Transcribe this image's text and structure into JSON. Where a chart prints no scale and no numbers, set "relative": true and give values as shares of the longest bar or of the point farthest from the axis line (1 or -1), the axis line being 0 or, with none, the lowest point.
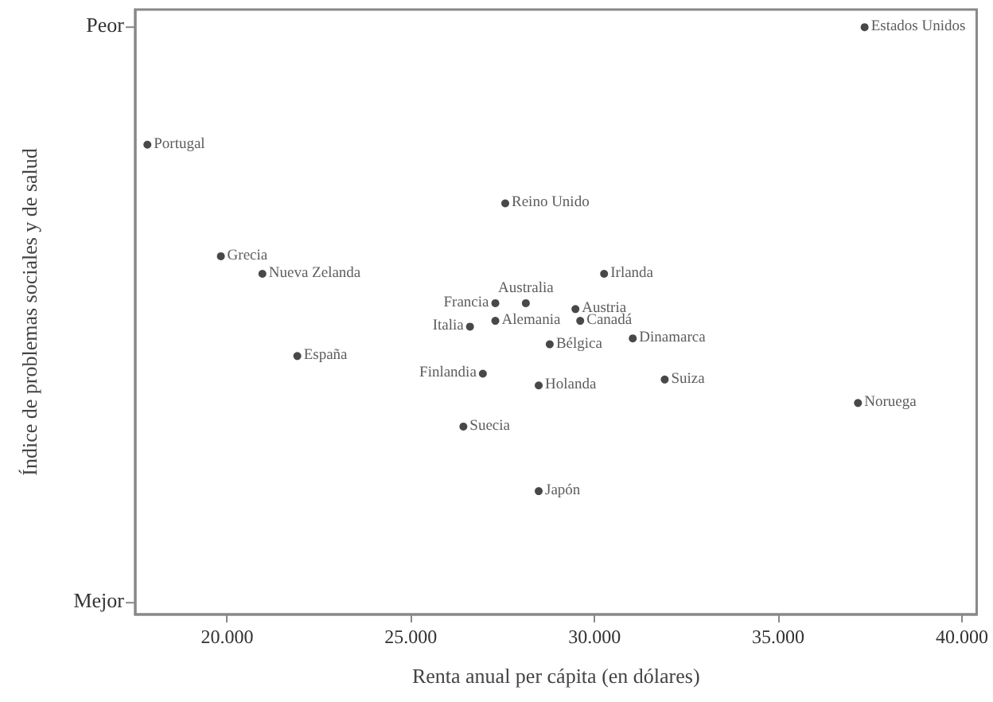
{
  "chart_data": {
    "type": "scatter",
    "xlabel": "Renta anual per cápita (en dólares)",
    "ylabel": "Índice de problemas sociales y de salud",
    "relative": true,
    "x": [
      37350,
      17830,
      27570,
      19830,
      20960,
      28130,
      27300,
      27300,
      26610,
      21910,
      28780,
      26960,
      28480,
      26430,
      28480,
      30260,
      29480,
      29610,
      31040,
      31910,
      37170
    ],
    "values": [
      1.0,
      0.8,
      0.7,
      0.61,
      0.58,
      0.53,
      0.53,
      0.5,
      0.49,
      0.44,
      0.46,
      0.41,
      0.39,
      0.32,
      0.21,
      0.58,
      0.52,
      0.5,
      0.47,
      0.4,
      0.36
    ],
    "color": "#1a1a1a",
    "marker": "circle",
    "xlim": [
      17500,
      40400
    ],
    "xticks": [
      {
        "value": 20000,
        "label": "20.000"
      },
      {
        "value": 25000,
        "label": "25.000"
      },
      {
        "value": 30000,
        "label": "30.000"
      },
      {
        "value": 35000,
        "label": "35.000"
      },
      {
        "value": 40000,
        "label": "40.000"
      }
    ],
    "annotations": [
      "Peor",
      "Mejor",
      {
        "text": "Estados Unidos",
        "x": 37350,
        "y": 1.0
      },
      {
        "text": "Portugal",
        "x": 17830,
        "y": 0.8
      },
      {
        "text": "Reino Unido",
        "x": 27570,
        "y": 0.7
      },
      {
        "text": "Grecia",
        "x": 19830,
        "y": 0.61
      },
      {
        "text": "Nueva Zelanda",
        "x": 20960,
        "y": 0.58
      },
      {
        "text": "Australia",
        "x": 28130,
        "y": 0.53
      },
      {
        "text": "Francia",
        "x": 27300,
        "y": 0.53
      },
      {
        "text": "Alemania",
        "x": 27300,
        "y": 0.5
      },
      {
        "text": "Italia",
        "x": 26610,
        "y": 0.49
      },
      {
        "text": "España",
        "x": 21910,
        "y": 0.44
      },
      {
        "text": "Bélgica",
        "x": 28780,
        "y": 0.46
      },
      {
        "text": "Finlandia",
        "x": 26960,
        "y": 0.41
      },
      {
        "text": "Holanda",
        "x": 28480,
        "y": 0.39
      },
      {
        "text": "Suecia",
        "x": 26430,
        "y": 0.32
      },
      {
        "text": "Japón",
        "x": 28480,
        "y": 0.21
      },
      {
        "text": "Irlanda",
        "x": 30260,
        "y": 0.58
      },
      {
        "text": "Austria",
        "x": 29480,
        "y": 0.52
      },
      {
        "text": "Canadá",
        "x": 29610,
        "y": 0.5
      },
      {
        "text": "Dinamarca",
        "x": 31040,
        "y": 0.47
      },
      {
        "text": "Suiza",
        "x": 31910,
        "y": 0.4
      },
      {
        "text": "Noruega",
        "x": 37170,
        "y": 0.36
      }
    ]
  }
}
